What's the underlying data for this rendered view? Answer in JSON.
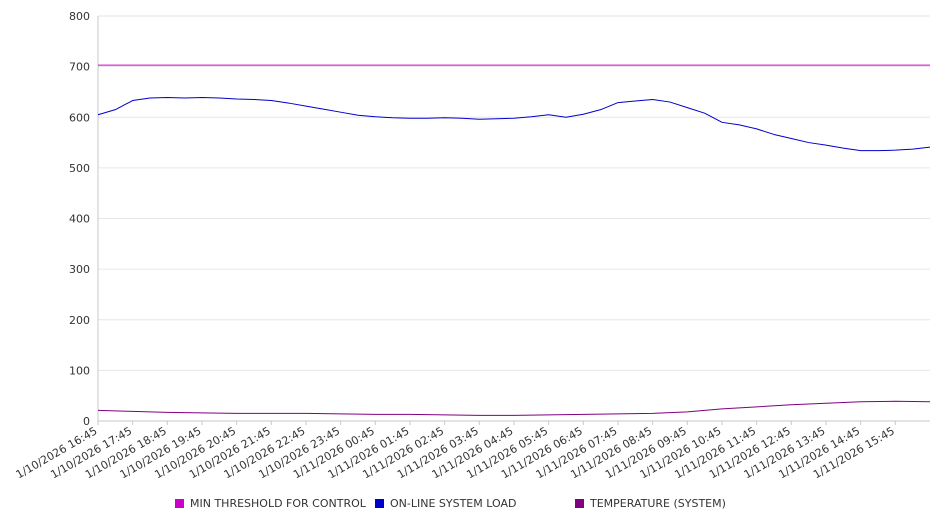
{
  "chart_data": {
    "type": "line",
    "title": "",
    "xlabel": "",
    "ylabel": "",
    "ylim": [
      0,
      800
    ],
    "yticks": [
      "0",
      "100",
      "200",
      "300",
      "400",
      "500",
      "600",
      "700",
      "800"
    ],
    "xticks": [
      "1/10/2026 16:45",
      "1/10/2026 17:45",
      "1/10/2026 18:45",
      "1/10/2026 19:45",
      "1/10/2026 20:45",
      "1/10/2026 21:45",
      "1/10/2026 22:45",
      "1/10/2026 23:45",
      "1/11/2026 00:45",
      "1/11/2026 01:45",
      "1/11/2026 02:45",
      "1/11/2026 03:45",
      "1/11/2026 04:45",
      "1/11/2026 05:45",
      "1/11/2026 06:45",
      "1/11/2026 07:45",
      "1/11/2026 08:45",
      "1/11/2026 09:45",
      "1/11/2026 10:45",
      "1/11/2026 11:45",
      "1/11/2026 12:45",
      "1/11/2026 13:45",
      "1/11/2026 14:45",
      "1/11/2026 15:45"
    ],
    "x_start": "1/10/2026 16:45",
    "x_end": "1/11/2026 16:45",
    "grid": true,
    "legend_position": "bottom",
    "series": [
      {
        "name": "MIN THRESHOLD FOR CONTROL",
        "color": "#cc00cc",
        "x": [
          "1/10/2026 16:45",
          "1/11/2026 16:45"
        ],
        "values": [
          703,
          703
        ]
      },
      {
        "name": "ON-LINE SYSTEM LOAD",
        "color": "#0000cc",
        "x": [
          "1/10/2026 16:45",
          "1/10/2026 17:15",
          "1/10/2026 17:45",
          "1/10/2026 18:15",
          "1/10/2026 18:45",
          "1/10/2026 19:15",
          "1/10/2026 19:45",
          "1/10/2026 20:15",
          "1/10/2026 20:45",
          "1/10/2026 21:15",
          "1/10/2026 21:45",
          "1/10/2026 22:15",
          "1/10/2026 22:45",
          "1/10/2026 23:15",
          "1/10/2026 23:45",
          "1/11/2026 00:15",
          "1/11/2026 00:45",
          "1/11/2026 01:15",
          "1/11/2026 01:45",
          "1/11/2026 02:15",
          "1/11/2026 02:45",
          "1/11/2026 03:15",
          "1/11/2026 03:45",
          "1/11/2026 04:15",
          "1/11/2026 04:45",
          "1/11/2026 05:15",
          "1/11/2026 05:45",
          "1/11/2026 06:15",
          "1/11/2026 06:45",
          "1/11/2026 07:15",
          "1/11/2026 07:45",
          "1/11/2026 08:15",
          "1/11/2026 08:45",
          "1/11/2026 09:15",
          "1/11/2026 09:45",
          "1/11/2026 10:15",
          "1/11/2026 10:45",
          "1/11/2026 11:15",
          "1/11/2026 11:45",
          "1/11/2026 12:15",
          "1/11/2026 12:45",
          "1/11/2026 13:15",
          "1/11/2026 13:45",
          "1/11/2026 14:15",
          "1/11/2026 14:45",
          "1/11/2026 15:15",
          "1/11/2026 15:45",
          "1/11/2026 16:15",
          "1/11/2026 16:45"
        ],
        "values": [
          605,
          615,
          633,
          638,
          639,
          638,
          639,
          638,
          636,
          635,
          633,
          628,
          622,
          616,
          610,
          604,
          601,
          599,
          598,
          598,
          599,
          598,
          596,
          597,
          598,
          601,
          605,
          600,
          606,
          615,
          629,
          632,
          635,
          630,
          619,
          608,
          590,
          585,
          577,
          566,
          558,
          550,
          545,
          539,
          534,
          534,
          535,
          537,
          541
        ]
      },
      {
        "name": "TEMPERATURE (SYSTEM)",
        "color": "#800080",
        "x": [
          "1/10/2026 16:45",
          "1/10/2026 17:45",
          "1/10/2026 18:45",
          "1/10/2026 19:45",
          "1/10/2026 20:45",
          "1/10/2026 21:45",
          "1/10/2026 22:45",
          "1/10/2026 23:45",
          "1/11/2026 00:45",
          "1/11/2026 01:45",
          "1/11/2026 02:45",
          "1/11/2026 03:45",
          "1/11/2026 04:45",
          "1/11/2026 05:45",
          "1/11/2026 06:45",
          "1/11/2026 07:45",
          "1/11/2026 08:45",
          "1/11/2026 09:45",
          "1/11/2026 10:45",
          "1/11/2026 11:45",
          "1/11/2026 12:45",
          "1/11/2026 13:45",
          "1/11/2026 14:45",
          "1/11/2026 15:45",
          "1/11/2026 16:45"
        ],
        "values": [
          21,
          19,
          17,
          16,
          15,
          15,
          15,
          14,
          13,
          13,
          12,
          11,
          11,
          12,
          13,
          14,
          15,
          18,
          24,
          28,
          32,
          35,
          38,
          39,
          38
        ]
      }
    ]
  }
}
